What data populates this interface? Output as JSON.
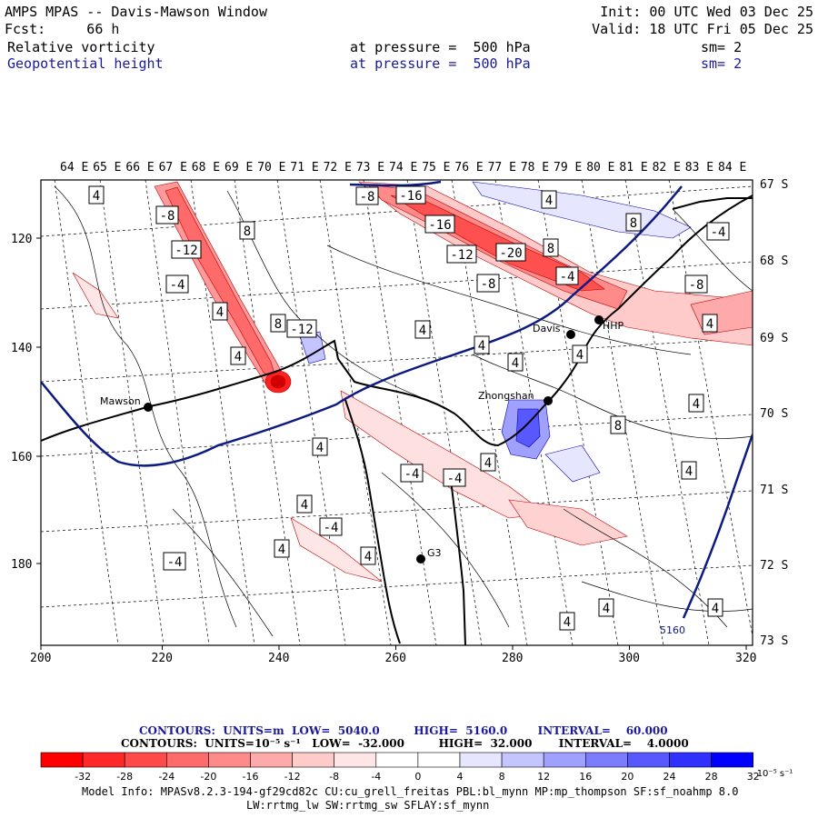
{
  "header": {
    "title": "AMPS MPAS -- Davis-Mawson Window",
    "forecast": "Fcst:     66 h",
    "init": "Init: 00 UTC Wed 03 Dec 25",
    "valid": "Valid: 18 UTC Fri 05 Dec 25",
    "field1": {
      "name": "Relative vorticity",
      "pressure": "at pressure =  500 hPa",
      "sm": "sm= 2"
    },
    "field2": {
      "name": "Geopotential height",
      "pressure": "at pressure =  500 hPa",
      "sm": "sm= 2"
    }
  },
  "map": {
    "lon_labels": [
      "64 E",
      "65 E",
      "66 E",
      "67 E",
      "68 E",
      "69 E",
      "70 E",
      "71 E",
      "72 E",
      "73 E",
      "74 E",
      "75 E",
      "76 E",
      "77 E",
      "78 E",
      "79 E",
      "80 E",
      "81 E",
      "82 E",
      "83 E",
      "84 E"
    ],
    "lat_labels": [
      "67 S",
      "68 S",
      "69 S",
      "70 S",
      "71 S",
      "72 S",
      "73 S"
    ],
    "x_ticks": [
      "200",
      "220",
      "240",
      "260",
      "280",
      "300",
      "320"
    ],
    "y_ticks": [
      "120",
      "140",
      "160",
      "180"
    ],
    "stations": [
      {
        "name": "Mawson"
      },
      {
        "name": "Davis"
      },
      {
        "name": "HHP"
      },
      {
        "name": "Zhongshan"
      },
      {
        "name": "G3"
      }
    ],
    "height_contour_label": "5160",
    "vorticity_labels": [
      "4",
      "-8",
      "-12",
      "8",
      "-4",
      "4",
      "4",
      "8",
      "-12",
      "-8",
      "-16",
      "-16",
      "-12",
      "-20",
      "-4",
      "4",
      "8",
      "8",
      "-4",
      "-8",
      "-8",
      "4",
      "4",
      "4",
      "4",
      "4",
      "8",
      "4",
      "-4",
      "-4",
      "4",
      "4",
      "4",
      "-4",
      "4",
      "-4",
      "4",
      "4",
      "4",
      "4",
      "4"
    ],
    "colors": {
      "height_contour": "#0d1a80",
      "coast": "#000000",
      "positive": "#ff0000",
      "negative": "#0000ff"
    }
  },
  "colorbar": {
    "contours_height": "CONTOURS:  UNITS=m  LOW=  5040.0         HIGH=  5160.0        INTERVAL=    60.000",
    "contours_vort": "CONTOURS:  UNITS=10⁻⁵ s⁻¹   LOW=  -32.000         HIGH=  32.000       INTERVAL=    4.0000",
    "tick_labels": [
      "-32",
      "-28",
      "-24",
      "-20",
      "-16",
      "-12",
      "-8",
      "-4",
      "0",
      "4",
      "8",
      "12",
      "16",
      "20",
      "24",
      "28",
      "32"
    ],
    "unit_label": "10⁻⁵ s⁻¹",
    "colors": [
      "#ff0000",
      "#ff2828",
      "#ff4a4a",
      "#ff6a6a",
      "#ff8a8a",
      "#ffaaaa",
      "#ffcaca",
      "#ffe6e6",
      "#ffffff",
      "#ffffff",
      "#e6e6ff",
      "#c4c4ff",
      "#a0a0ff",
      "#7c7cff",
      "#5858ff",
      "#3030ff",
      "#0000ff"
    ]
  },
  "model_info": {
    "line1": "Model Info: MPASv8.2.3-194-gf29cd82c CU:cu_grell_freitas PBL:bl_mynn MP:mp_thompson SF:sf_noahmp 8.0",
    "line2": "LW:rrtmg_lw SW:rrtmg_sw SFLAY:sf_mynn"
  }
}
